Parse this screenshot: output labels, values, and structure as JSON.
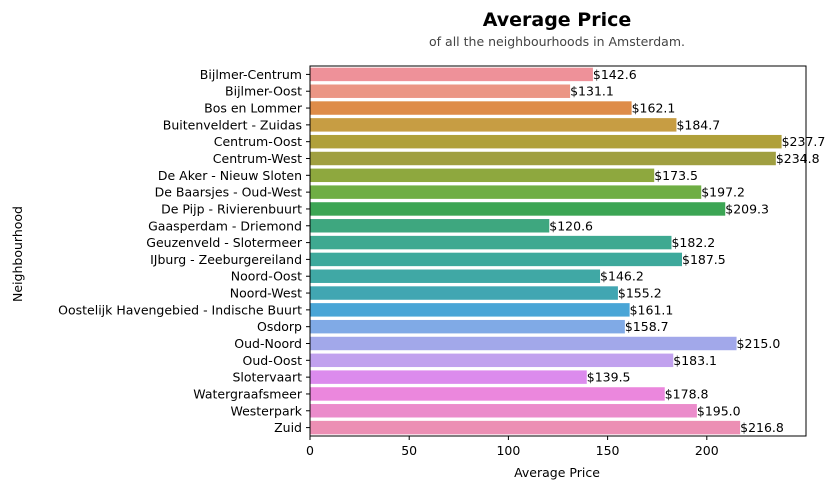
{
  "chart_data": {
    "type": "bar",
    "orientation": "horizontal",
    "title": "Average Price",
    "subtitle": "of all the neighbourhoods in Amsterdam.",
    "xlabel": "Average Price",
    "ylabel": "Neighbourhood",
    "xlim": [
      0,
      250
    ],
    "xticks": [
      0,
      50,
      100,
      150,
      200
    ],
    "grid": false,
    "label_prefix": "$",
    "categories": [
      "Bijlmer-Centrum",
      "Bijlmer-Oost",
      "Bos en Lommer",
      "Buitenveldert - Zuidas",
      "Centrum-Oost",
      "Centrum-West",
      "De Aker - Nieuw Sloten",
      "De Baarsjes - Oud-West",
      "De Pijp - Rivierenbuurt",
      "Gaasperdam - Driemond",
      "Geuzenveld - Slotermeer",
      "IJburg - Zeeburgereiland",
      "Noord-Oost",
      "Noord-West",
      "Oostelijk Havengebied - Indische Buurt",
      "Osdorp",
      "Oud-Noord",
      "Oud-Oost",
      "Slotervaart",
      "Watergraafsmeer",
      "Westerpark",
      "Zuid"
    ],
    "values": [
      142.6,
      131.1,
      162.1,
      184.7,
      237.7,
      234.8,
      173.5,
      197.2,
      209.3,
      120.6,
      182.2,
      187.5,
      146.2,
      155.2,
      161.1,
      158.7,
      215.0,
      183.1,
      139.5,
      178.8,
      195.0,
      216.8
    ],
    "colors": [
      "#ee9199",
      "#eb9685",
      "#de8c49",
      "#c79d43",
      "#b0a03a",
      "#a09f41",
      "#8ea83e",
      "#6fae44",
      "#3ca554",
      "#3ea77f",
      "#3ea991",
      "#3ea99c",
      "#40a8a5",
      "#41a6b2",
      "#49a5d6",
      "#80aae6",
      "#a2a8ea",
      "#c1a1ee",
      "#dc8bed",
      "#eb87dd",
      "#eb8ccb",
      "#ec8fb4"
    ]
  }
}
